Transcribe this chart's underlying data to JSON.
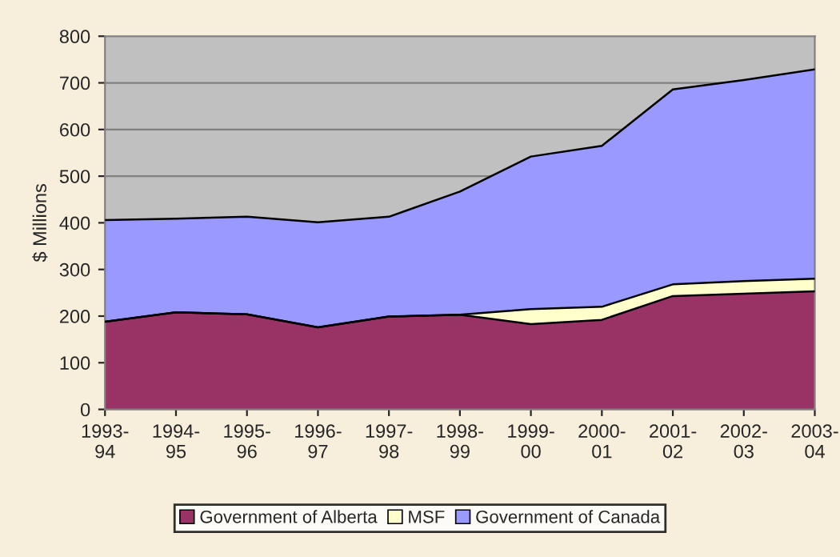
{
  "chart_data": {
    "type": "area",
    "stacked": true,
    "ylabel": "$ Millions",
    "categories": [
      "1993-\n94",
      "1994-\n95",
      "1995-\n96",
      "1996-\n97",
      "1997-\n98",
      "1998-\n99",
      "1999-\n00",
      "2000-\n01",
      "2001-\n02",
      "2002-\n03",
      "2003-\n04"
    ],
    "series": [
      {
        "name": "Government of Alberta",
        "color": "#993366",
        "values": [
          188,
          208,
          204,
          176,
          199,
          203,
          183,
          192,
          243,
          248,
          253
        ]
      },
      {
        "name": "MSF",
        "color": "#ffffcc",
        "values": [
          0,
          0,
          0,
          0,
          0,
          0,
          32,
          28,
          25,
          27,
          27
        ]
      },
      {
        "name": "Government of Canada",
        "color": "#9999ff",
        "values": [
          218,
          201,
          209,
          225,
          214,
          264,
          327,
          345,
          418,
          431,
          449
        ]
      }
    ],
    "ylim": [
      0,
      800
    ],
    "yticks": [
      0,
      100,
      200,
      300,
      400,
      500,
      600,
      700,
      800
    ],
    "grid": "y",
    "legend": "bottom"
  }
}
